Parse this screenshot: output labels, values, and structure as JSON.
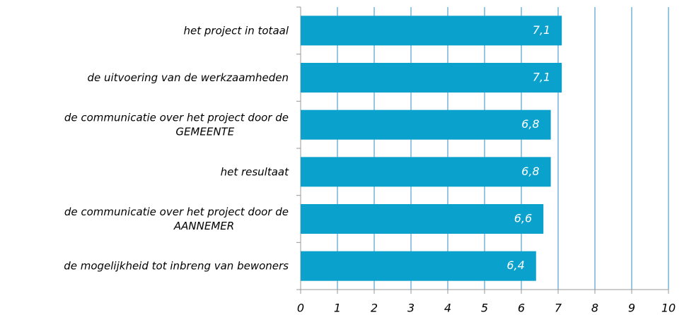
{
  "chart_data": {
    "type": "bar",
    "orientation": "horizontal",
    "categories": [
      "het project in totaal",
      "de uitvoering van de werkzaamheden",
      "de communicatie over het project door de\nGEMEENTE",
      "het resultaat",
      "de communicatie over het project door de\nAANNEMER",
      "de mogelijkheid tot inbreng van bewoners"
    ],
    "values": [
      7.1,
      7.1,
      6.8,
      6.8,
      6.6,
      6.4
    ],
    "value_labels": [
      "7,1",
      "7,1",
      "6,8",
      "6,8",
      "6,6",
      "6,4"
    ],
    "color": "#0ba1cd",
    "xlim": [
      0,
      10
    ],
    "xticks": [
      0,
      1,
      2,
      3,
      4,
      5,
      6,
      7,
      8,
      9,
      10
    ],
    "grid": true
  }
}
